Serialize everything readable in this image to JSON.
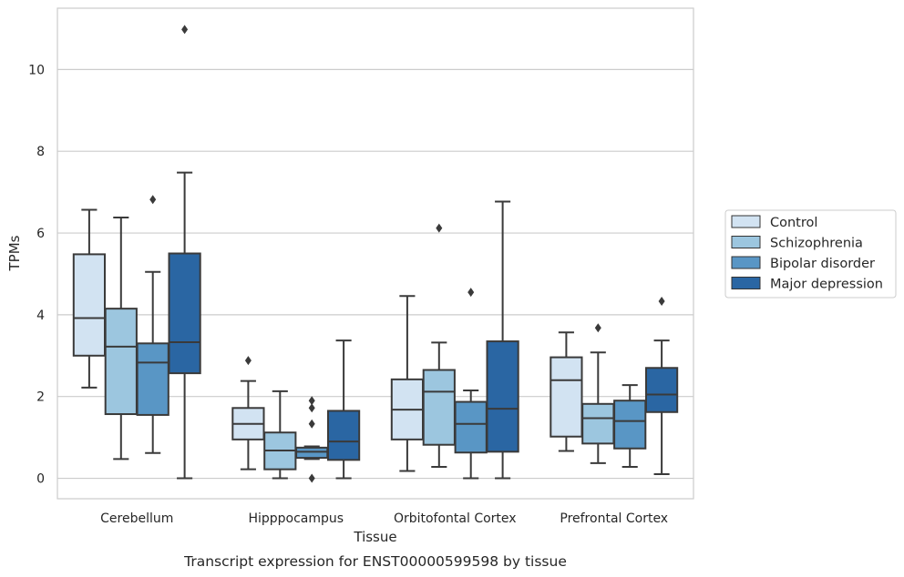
{
  "chart_data": {
    "type": "box",
    "title": "",
    "caption": "Transcript expression for ENST00000599598 by tissue",
    "xlabel": "Tissue",
    "ylabel": "TPMs",
    "ylim": [
      -0.5,
      11.5
    ],
    "yticks": [
      0,
      2,
      4,
      6,
      8,
      10
    ],
    "grid": "horizontal",
    "legend_position": "right",
    "categories": [
      "Cerebellum",
      "Hipppocampus",
      "Orbitofontal Cortex",
      "Prefrontal Cortex"
    ],
    "series": [
      {
        "name": "Control",
        "color": "#d2e3f2",
        "boxes": [
          {
            "whisker_low": 2.22,
            "q1": 3.0,
            "median": 3.92,
            "q3": 5.48,
            "whisker_high": 6.57,
            "outliers": []
          },
          {
            "whisker_low": 0.22,
            "q1": 0.95,
            "median": 1.33,
            "q3": 1.72,
            "whisker_high": 2.38,
            "outliers": [
              2.88
            ]
          },
          {
            "whisker_low": 0.18,
            "q1": 0.95,
            "median": 1.68,
            "q3": 2.42,
            "whisker_high": 4.46,
            "outliers": []
          },
          {
            "whisker_low": 0.67,
            "q1": 1.02,
            "median": 2.4,
            "q3": 2.96,
            "whisker_high": 3.57,
            "outliers": []
          }
        ]
      },
      {
        "name": "Schizophrenia",
        "color": "#9cc6df",
        "boxes": [
          {
            "whisker_low": 0.47,
            "q1": 1.57,
            "median": 3.22,
            "q3": 4.15,
            "whisker_high": 6.38,
            "outliers": []
          },
          {
            "whisker_low": 0.0,
            "q1": 0.22,
            "median": 0.68,
            "q3": 1.12,
            "whisker_high": 2.13,
            "outliers": []
          },
          {
            "whisker_low": 0.28,
            "q1": 0.82,
            "median": 2.12,
            "q3": 2.65,
            "whisker_high": 3.32,
            "outliers": [
              6.12
            ]
          },
          {
            "whisker_low": 0.37,
            "q1": 0.85,
            "median": 1.47,
            "q3": 1.82,
            "whisker_high": 3.08,
            "outliers": [
              3.68
            ]
          }
        ]
      },
      {
        "name": "Bipolar disorder",
        "color": "#5996c5",
        "boxes": [
          {
            "whisker_low": 0.62,
            "q1": 1.55,
            "median": 2.83,
            "q3": 3.3,
            "whisker_high": 5.05,
            "outliers": [
              6.82
            ]
          },
          {
            "whisker_low": 0.47,
            "q1": 0.5,
            "median": 0.65,
            "q3": 0.75,
            "whisker_high": 0.78,
            "outliers": [
              1.33,
              1.72,
              1.9,
              0.0
            ]
          },
          {
            "whisker_low": 0.0,
            "q1": 0.63,
            "median": 1.33,
            "q3": 1.87,
            "whisker_high": 2.15,
            "outliers": [
              4.55
            ]
          },
          {
            "whisker_low": 0.28,
            "q1": 0.73,
            "median": 1.4,
            "q3": 1.9,
            "whisker_high": 2.28,
            "outliers": []
          }
        ]
      },
      {
        "name": "Major depression",
        "color": "#2a66a3",
        "boxes": [
          {
            "whisker_low": 0.0,
            "q1": 2.57,
            "median": 3.33,
            "q3": 5.5,
            "whisker_high": 7.48,
            "outliers": [
              10.98
            ]
          },
          {
            "whisker_low": 0.0,
            "q1": 0.45,
            "median": 0.9,
            "q3": 1.65,
            "whisker_high": 3.37,
            "outliers": []
          },
          {
            "whisker_low": 0.0,
            "q1": 0.65,
            "median": 1.7,
            "q3": 3.35,
            "whisker_high": 6.77,
            "outliers": []
          },
          {
            "whisker_low": 0.1,
            "q1": 1.62,
            "median": 2.05,
            "q3": 2.7,
            "whisker_high": 3.37,
            "outliers": [
              4.33
            ]
          }
        ]
      }
    ]
  }
}
